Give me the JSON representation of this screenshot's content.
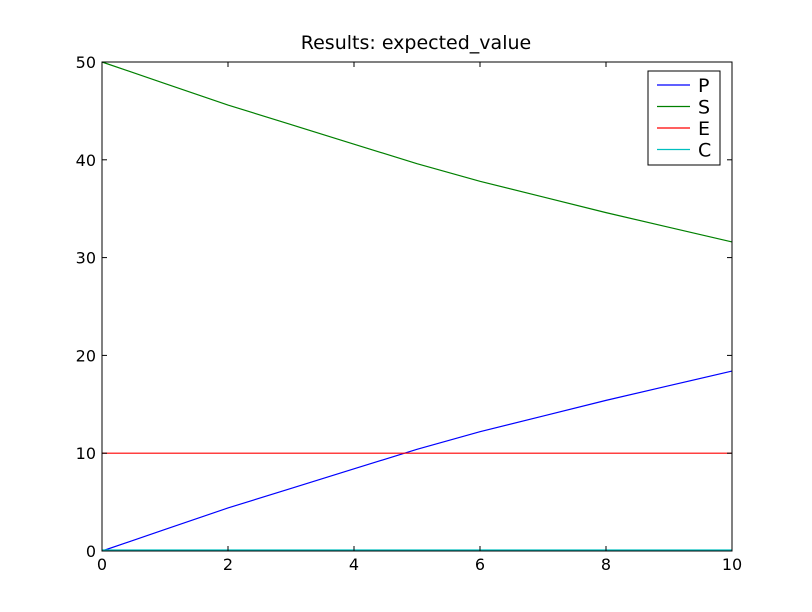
{
  "chart_data": {
    "type": "line",
    "title": "Results: expected_value",
    "xlabel": "",
    "ylabel": "",
    "xlim": [
      0,
      10
    ],
    "ylim": [
      0,
      50
    ],
    "xticks": [
      0,
      2,
      4,
      6,
      8,
      10
    ],
    "yticks": [
      0,
      10,
      20,
      30,
      40,
      50
    ],
    "grid": false,
    "legend_position": "top-right",
    "x": [
      0,
      1,
      2,
      3,
      4,
      5,
      6,
      7,
      8,
      9,
      10
    ],
    "series": [
      {
        "name": "P",
        "color": "#0000ff",
        "values": [
          0,
          2.2,
          4.4,
          6.4,
          8.4,
          10.4,
          12.2,
          13.8,
          15.4,
          16.9,
          18.4
        ]
      },
      {
        "name": "S",
        "color": "#008000",
        "values": [
          50,
          47.8,
          45.6,
          43.6,
          41.6,
          39.6,
          37.8,
          36.2,
          34.6,
          33.1,
          31.6
        ]
      },
      {
        "name": "E",
        "color": "#ff0000",
        "values": [
          10,
          10,
          10,
          10,
          10,
          10,
          10,
          10,
          10,
          10,
          10
        ]
      },
      {
        "name": "C",
        "color": "#00bfbf",
        "values": [
          0.1,
          0.1,
          0.1,
          0.1,
          0.1,
          0.1,
          0.1,
          0.1,
          0.1,
          0.1,
          0.1
        ]
      }
    ]
  }
}
